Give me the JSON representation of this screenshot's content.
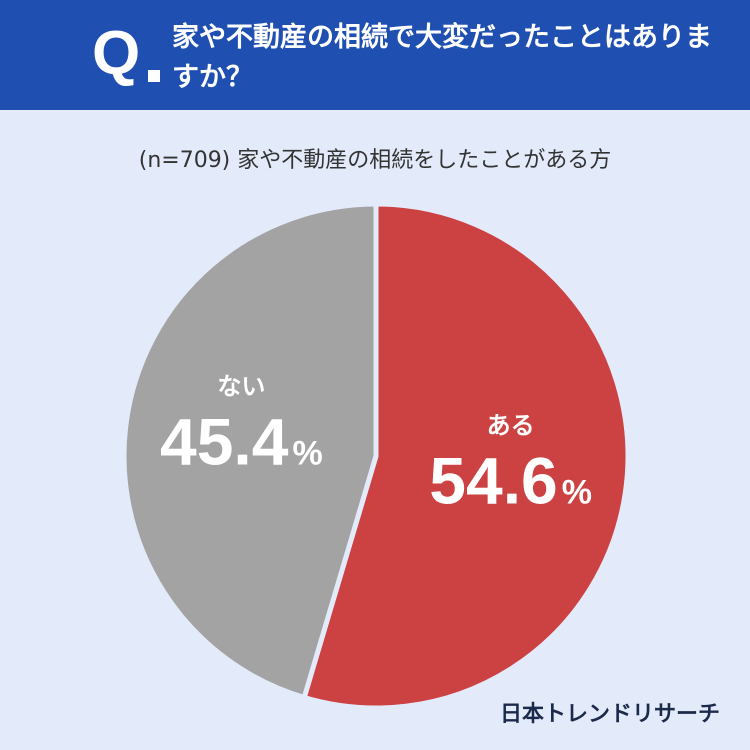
{
  "header": {
    "q_label": "Q",
    "question": "家や不動産の相続で大変だったことはありますか？"
  },
  "subtitle": "(n=709) 家や不動産の相続をしたことがある方",
  "colors": {
    "header_bg": "#1f4fb0",
    "page_bg": "#e3ebfa",
    "slice_yes": "#cc4141",
    "slice_no": "#a3a3a3"
  },
  "chart_data": {
    "type": "pie",
    "n": 709,
    "slices": [
      {
        "label": "ある",
        "value": 54.6,
        "display": "54.6",
        "unit": "%",
        "color": "#cc4141"
      },
      {
        "label": "ない",
        "value": 45.4,
        "display": "45.4",
        "unit": "%",
        "color": "#a3a3a3"
      }
    ]
  },
  "brand": "日本トレンドリサーチ"
}
